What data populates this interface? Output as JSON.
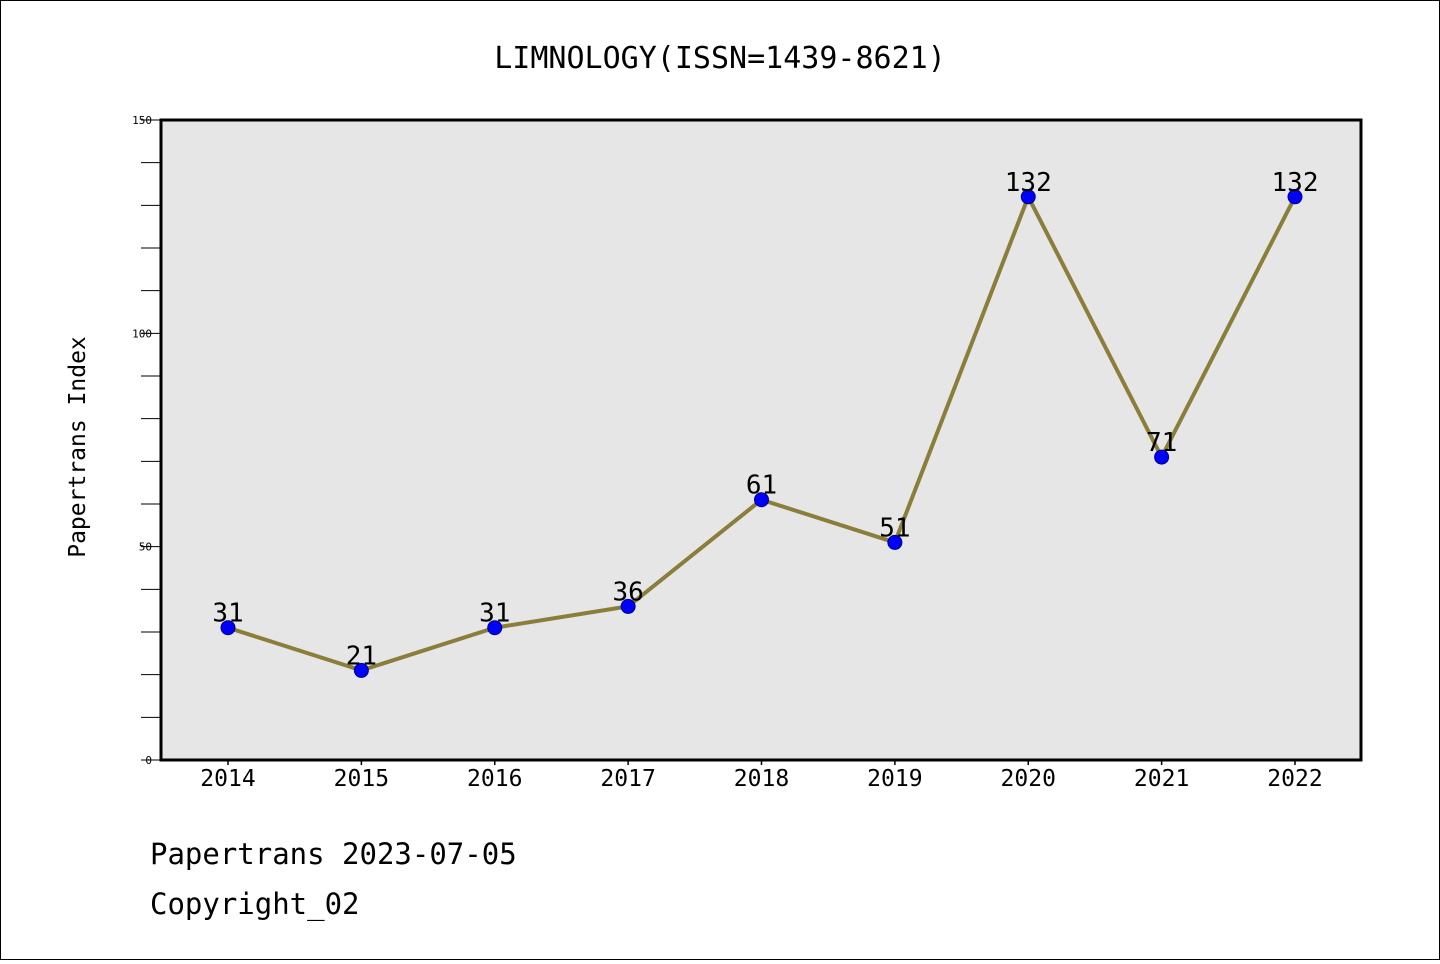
{
  "chart_data": {
    "type": "line",
    "title": "LIMNOLOGY(ISSN=1439-8621)",
    "xlabel": "",
    "ylabel": "Papertrans Index",
    "categories": [
      "2014",
      "2015",
      "2016",
      "2017",
      "2018",
      "2019",
      "2020",
      "2021",
      "2022"
    ],
    "series": [
      {
        "values": [
          31,
          21,
          31,
          36,
          61,
          51,
          132,
          71,
          132
        ]
      }
    ],
    "data_labels": [
      "31",
      "21",
      "31",
      "36",
      "61",
      "51",
      "132",
      "71",
      "132"
    ],
    "ylim": [
      0,
      150
    ],
    "yticks": [
      "0",
      "50",
      "100",
      "150"
    ],
    "grid": false,
    "legend": "none"
  },
  "footer": {
    "line1": "Papertrans 2023-07-05",
    "line2": "Copyright_02"
  },
  "colors": {
    "line": "#8b7d3a",
    "marker": "#0000ff",
    "plot_bg": "#e6e6e6"
  }
}
